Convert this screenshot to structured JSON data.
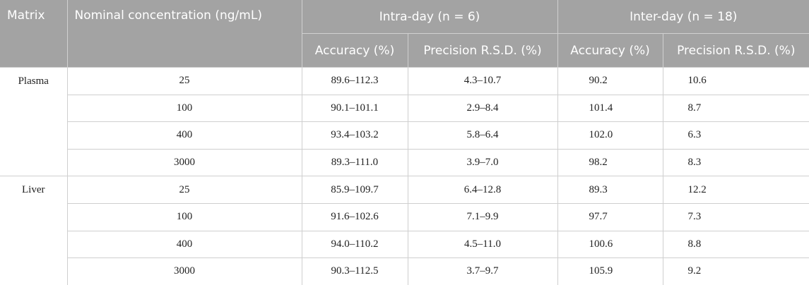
{
  "table": {
    "header": {
      "matrix": "Matrix",
      "nominal": "Nominal concentration (ng/mL)",
      "intra": "Intra-day (n = 6)",
      "inter": "Inter-day (n = 18)",
      "sub": [
        "Accuracy (%)",
        "Precision R.S.D. (%)",
        "Accuracy (%)",
        "Precision R.S.D. (%)"
      ]
    },
    "groups": [
      {
        "matrix": "Plasma",
        "rows": [
          [
            "25",
            "89.6–112.3",
            "4.3–10.7",
            "90.2",
            "10.6"
          ],
          [
            "100",
            "90.1–101.1",
            "2.9–8.4",
            "101.4",
            "8.7"
          ],
          [
            "400",
            "93.4–103.2",
            "5.8–6.4",
            "102.0",
            "6.3"
          ],
          [
            "3000",
            "89.3–111.0",
            "3.9–7.0",
            "98.2",
            "8.3"
          ]
        ]
      },
      {
        "matrix": "Liver",
        "rows": [
          [
            "25",
            "85.9–109.7",
            "6.4–12.8",
            "89.3",
            "12.2"
          ],
          [
            "100",
            "91.6–102.6",
            "7.1–9.9",
            "97.7",
            "7.3"
          ],
          [
            "400",
            "94.0–110.2",
            "4.5–11.0",
            "100.6",
            "8.8"
          ],
          [
            "3000",
            "90.3–112.5",
            "3.7–9.7",
            "105.9",
            "9.2"
          ]
        ]
      }
    ]
  }
}
